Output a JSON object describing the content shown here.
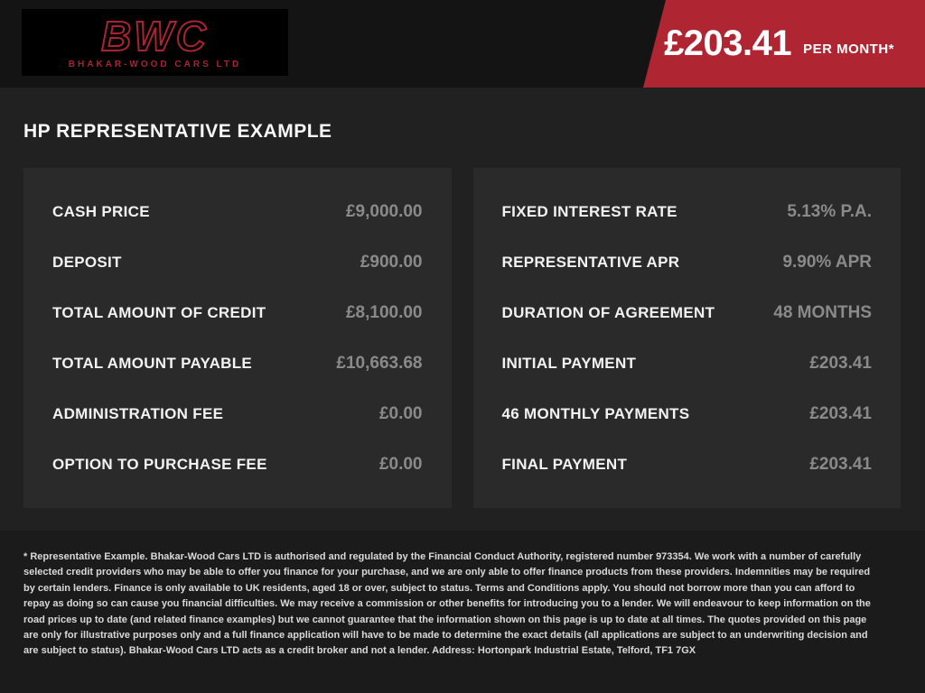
{
  "header": {
    "logo": {
      "acronym": "BWC",
      "company": "BHAKAR-WOOD CARS LTD"
    },
    "price_badge": {
      "amount": "£203.41",
      "suffix": "PER MONTH*"
    }
  },
  "page": {
    "title": "HP REPRESENTATIVE EXAMPLE"
  },
  "finance": {
    "left_panel": {
      "rows": [
        {
          "label": "CASH PRICE",
          "value": "£9,000.00"
        },
        {
          "label": "DEPOSIT",
          "value": "£900.00"
        },
        {
          "label": "TOTAL AMOUNT OF CREDIT",
          "value": "£8,100.00"
        },
        {
          "label": "TOTAL AMOUNT PAYABLE",
          "value": "£10,663.68"
        },
        {
          "label": "ADMINISTRATION FEE",
          "value": "£0.00"
        },
        {
          "label": "OPTION TO PURCHASE FEE",
          "value": "£0.00"
        }
      ]
    },
    "right_panel": {
      "rows": [
        {
          "label": "FIXED INTEREST RATE",
          "value": "5.13% P.A."
        },
        {
          "label": "REPRESENTATIVE APR",
          "value": "9.90% APR"
        },
        {
          "label": "DURATION OF AGREEMENT",
          "value": "48 MONTHS"
        },
        {
          "label": "INITIAL PAYMENT",
          "value": "£203.41"
        },
        {
          "label": "46 MONTHLY PAYMENTS",
          "value": "£203.41"
        },
        {
          "label": "FINAL PAYMENT",
          "value": "£203.41"
        }
      ]
    }
  },
  "footer": {
    "disclaimer": "* Representative Example. Bhakar-Wood Cars LTD is authorised and regulated by the Financial Conduct Authority, registered number 973354. We work with a number of carefully selected credit providers who may be able to offer you finance for your purchase, and we are only able to offer finance products from these providers. Indemnities may be required by certain lenders. Finance is only available to UK residents, aged 18 or over, subject to status. Terms and Conditions apply. You should not borrow more than you can afford to repay as doing so can cause you financial difficulties. We may receive a commission or other benefits for introducing you to a lender. We will endeavour to keep information on the road prices up to date (and related finance examples) but we cannot guarantee that the information shown on this page is up to date at all times. The quotes provided on this page are only for illustrative purposes only and a full finance application will have to be made to determine the exact details (all applications are subject to an underwriting decision and are subject to status). Bhakar-Wood Cars LTD acts as a credit broker and not a lender. Address: Hortonpark Industrial Estate, Telford, TF1 7GX"
  },
  "colors": {
    "accent_red": "#b02532",
    "logo_red": "#a92330",
    "topbar_bg": "#141414",
    "page_bg": "#212121",
    "panel_bg": "#2a2a2a",
    "footer_bg": "#1b1b1b",
    "value_gray": "#8a8a8a"
  }
}
